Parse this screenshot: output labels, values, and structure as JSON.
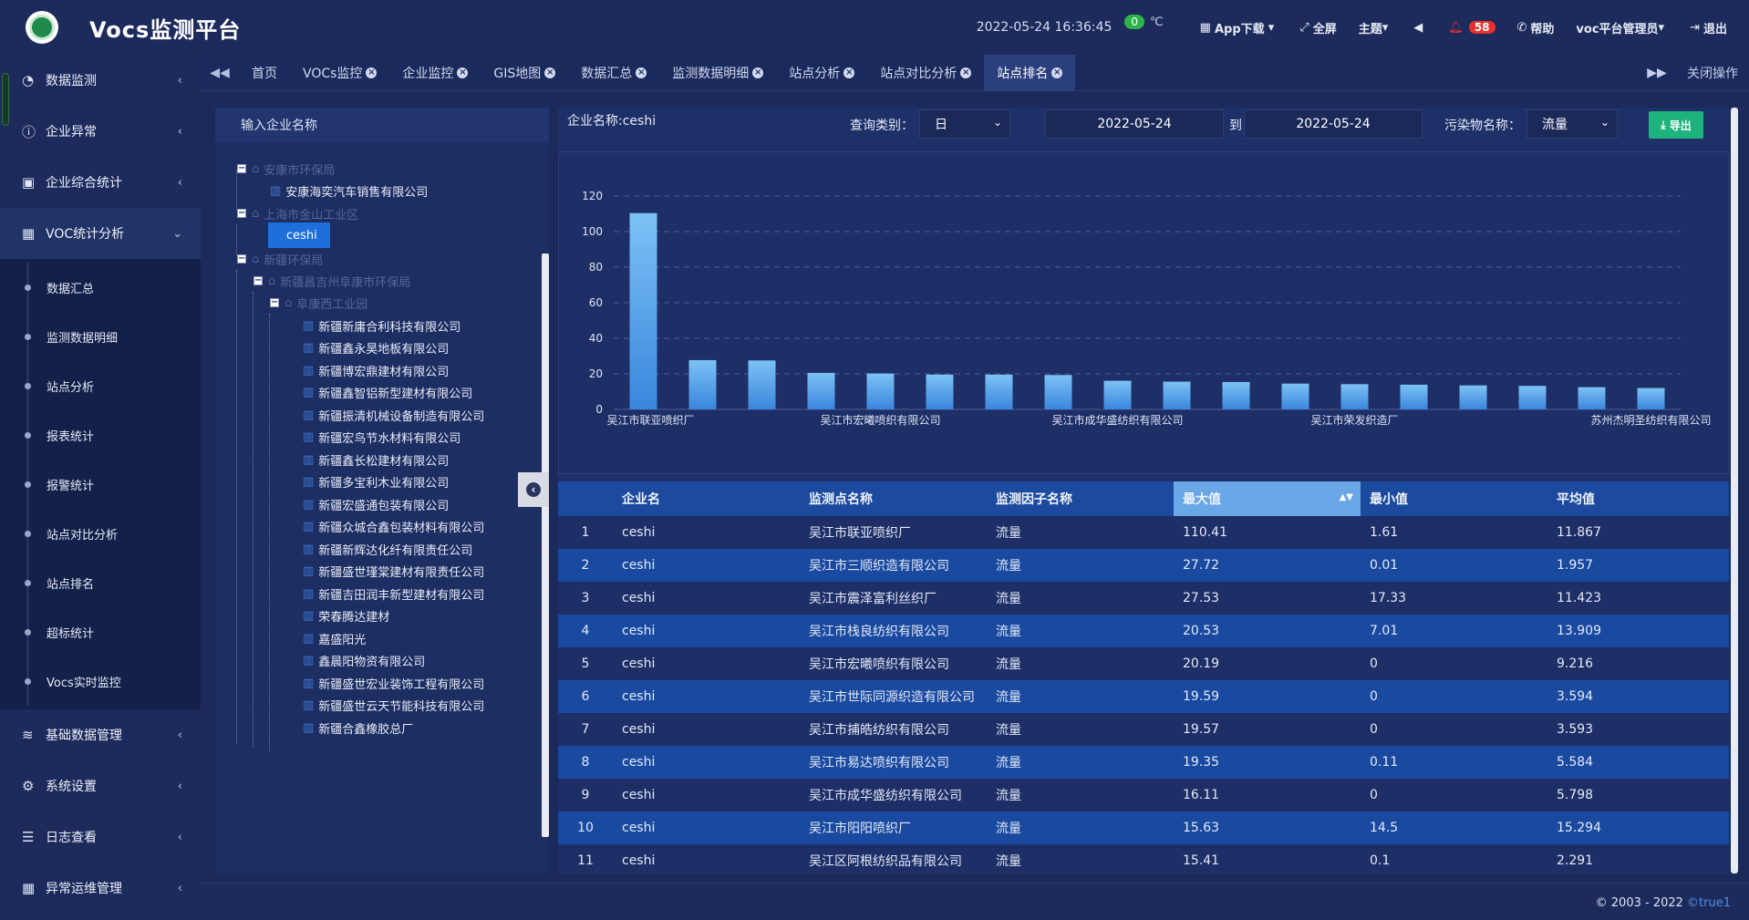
{
  "header": {
    "title": "Vocs监测平台",
    "datetime": "2022-05-24  16:36:45",
    "temp_badge": "0",
    "temp_unit": "℃",
    "app_download": "App下载",
    "fullscreen": "全屏",
    "theme": "主题",
    "alert_count": "58",
    "help": "帮助",
    "user": "voc平台管理员",
    "logout": "退出"
  },
  "sidebar": {
    "top_items": [
      {
        "label": "数据监测",
        "icon": "chart-circle-icon"
      },
      {
        "label": "企业异常",
        "icon": "alert-circle-icon"
      },
      {
        "label": "企业综合统计",
        "icon": "monitor-icon"
      },
      {
        "label": "VOC统计分析",
        "icon": "calendar-icon"
      }
    ],
    "sub_items": [
      "数据汇总",
      "监测数据明细",
      "站点分析",
      "报表统计",
      "报警统计",
      "站点对比分析",
      "站点排名",
      "超标统计",
      "Vocs实时监控"
    ],
    "bottom_items": [
      {
        "label": "基础数据管理",
        "icon": "layers-icon"
      },
      {
        "label": "系统设置",
        "icon": "gear-icon"
      },
      {
        "label": "日志查看",
        "icon": "log-icon"
      },
      {
        "label": "异常运维管理",
        "icon": "calendar-icon"
      }
    ]
  },
  "tabs": {
    "items": [
      "首页",
      "VOCs监控",
      "企业监控",
      "GIS地图",
      "数据汇总",
      "监测数据明细",
      "站点分析",
      "站点对比分析",
      "站点排名"
    ],
    "close_ops": "关闭操作"
  },
  "tree": {
    "search_placeholder": "输入企业名称",
    "nodes": [
      "安康市环保局",
      "安康海奕汽车销售有限公司",
      "上海市金山工业区",
      "ceshi",
      "新疆环保局",
      "新疆昌吉州阜康市环保局",
      "阜康西工业园",
      "新疆新庸合利科技有限公司",
      "新疆鑫永昊地板有限公司",
      "新疆博宏鼎建材有限公司",
      "新疆鑫智铝新型建材有限公司",
      "新疆振清机械设备制造有限公司",
      "新疆宏鸟节水材料有限公司",
      "新疆鑫长松建材有限公司",
      "新疆多宝利木业有限公司",
      "新疆宏盛通包装有限公司",
      "新疆众城合鑫包装材料有限公司",
      "新疆新辉达化纤有限责任公司",
      "新疆盛世瑾棠建材有限责任公司",
      "新疆吉田润丰新型建材有限公司",
      "荣春腾达建材",
      "嘉盛阳光",
      "鑫晨阳物资有限公司",
      "新疆盛世宏业装饰工程有限公司",
      "新疆盛世云天节能科技有限公司",
      "新疆合鑫橡胶总厂"
    ]
  },
  "filters": {
    "company_label": "企业名称:ceshi",
    "query_type_label": "查询类别：",
    "query_type_value": "日",
    "start_date": "2022-05-24",
    "to_label": "到",
    "end_date": "2022-05-24",
    "pollutant_label": "污染物名称：",
    "pollutant_value": "流量",
    "export_label": "导出"
  },
  "chart_data": {
    "type": "bar",
    "categories": [
      "吴江市联亚喷织厂",
      "吴江市三顺织造有限公司",
      "吴江市震泽富利丝织厂",
      "吴江市栈良纺织有限公司",
      "吴江市宏曦喷织有限公司",
      "吴江市世际同源织造有限公司",
      "吴江市捕皓纺织有限公司",
      "吴江市易达喷织有限公司",
      "吴江市成华盛纺织有限公司",
      "吴江市阳阳喷织厂",
      "吴江区阿根纺织品有限公司",
      "",
      "吴江市荣发织造厂",
      "",
      "",
      "",
      "",
      "苏州杰明圣纺织有限公司"
    ],
    "visible_tick_labels": [
      "吴江市联亚喷织厂",
      "吴江市宏曦喷织有限公司",
      "吴江市成华盛纺织有限公司",
      "吴江市荣发织造厂",
      "苏州杰明圣纺织有限公司"
    ],
    "values": [
      110.41,
      27.72,
      27.53,
      20.53,
      20.19,
      19.59,
      19.57,
      19.35,
      16.11,
      15.63,
      15.41,
      14.5,
      14.2,
      13.9,
      13.5,
      13.2,
      12.5,
      12.0
    ],
    "ylim": [
      0,
      120
    ],
    "yticks": [
      0,
      20,
      40,
      60,
      80,
      100,
      120
    ],
    "grid": true,
    "bar_color": "#5aa9ec"
  },
  "table": {
    "headers": [
      "",
      "企业名",
      "监测点名称",
      "监测因子名称",
      "最大值",
      "最小值",
      "平均值"
    ],
    "rows": [
      [
        "1",
        "ceshi",
        "吴江市联亚喷织厂",
        "流量",
        "110.41",
        "1.61",
        "11.867"
      ],
      [
        "2",
        "ceshi",
        "吴江市三顺织造有限公司",
        "流量",
        "27.72",
        "0.01",
        "1.957"
      ],
      [
        "3",
        "ceshi",
        "吴江市震泽富利丝织厂",
        "流量",
        "27.53",
        "17.33",
        "11.423"
      ],
      [
        "4",
        "ceshi",
        "吴江市栈良纺织有限公司",
        "流量",
        "20.53",
        "7.01",
        "13.909"
      ],
      [
        "5",
        "ceshi",
        "吴江市宏曦喷织有限公司",
        "流量",
        "20.19",
        "0",
        "9.216"
      ],
      [
        "6",
        "ceshi",
        "吴江市世际同源织造有限公司",
        "流量",
        "19.59",
        "0",
        "3.594"
      ],
      [
        "7",
        "ceshi",
        "吴江市捕皓纺织有限公司",
        "流量",
        "19.57",
        "0",
        "3.593"
      ],
      [
        "8",
        "ceshi",
        "吴江市易达喷织有限公司",
        "流量",
        "19.35",
        "0.11",
        "5.584"
      ],
      [
        "9",
        "ceshi",
        "吴江市成华盛纺织有限公司",
        "流量",
        "16.11",
        "0",
        "5.798"
      ],
      [
        "10",
        "ceshi",
        "吴江市阳阳喷织厂",
        "流量",
        "15.63",
        "14.5",
        "15.294"
      ],
      [
        "11",
        "ceshi",
        "吴江区阿根纺织品有限公司",
        "流量",
        "15.41",
        "0.1",
        "2.291"
      ]
    ]
  },
  "footer": {
    "copyright": "© 2003 - 2022 ",
    "brand": "©true1"
  }
}
